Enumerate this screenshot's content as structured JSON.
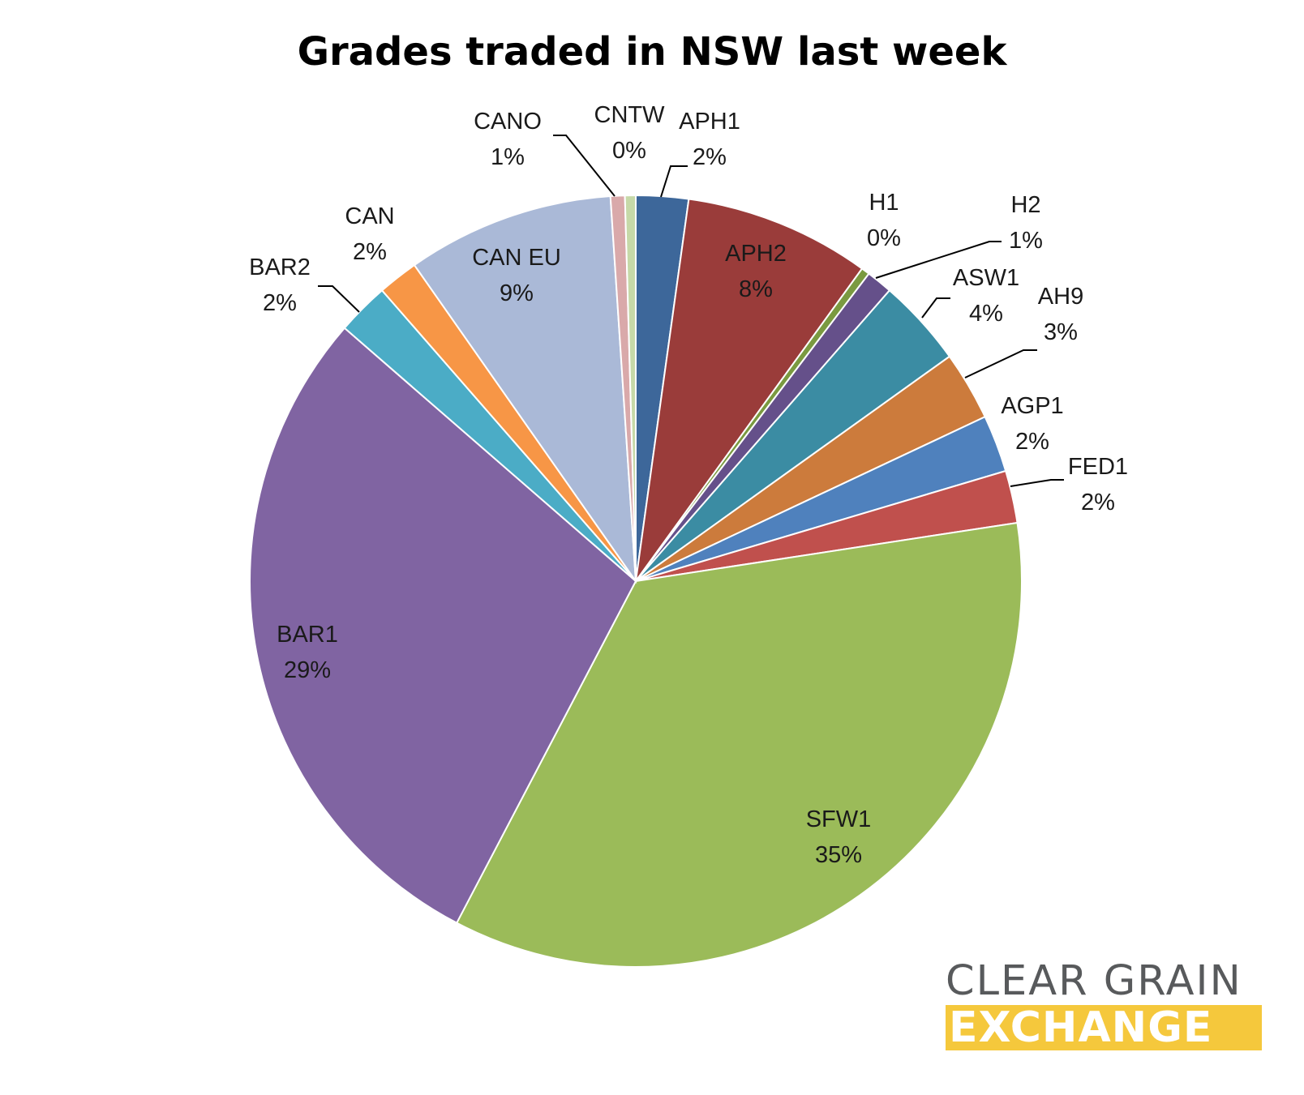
{
  "title": "Grades traded in NSW last week",
  "logo": {
    "line1": "CLEAR GRAIN",
    "line2": "EXCHANGE",
    "text_color": "#585a5c",
    "band_color": "#f5c83c"
  },
  "chart_data": {
    "type": "pie",
    "title": "Grades traded in NSW last week",
    "start": "12 o'clock, clockwise",
    "slices": [
      {
        "name": "APH1",
        "value": 2.2,
        "label": "APH1",
        "pct": "2%",
        "color": "#3d679a"
      },
      {
        "name": "APH2",
        "value": 7.8,
        "label": "APH2",
        "pct": "8%",
        "color": "#9a3c3a"
      },
      {
        "name": "H1",
        "value": 0.35,
        "label": "H1",
        "pct": "0%",
        "color": "#7a9a40"
      },
      {
        "name": "H2",
        "value": 1.1,
        "label": "H2",
        "pct": "1%",
        "color": "#65508a"
      },
      {
        "name": "ASW1",
        "value": 3.7,
        "label": "ASW1",
        "pct": "4%",
        "color": "#3b8ca3"
      },
      {
        "name": "AH9",
        "value": 2.9,
        "label": "AH9",
        "pct": "3%",
        "color": "#cc7b3c"
      },
      {
        "name": "AGP1",
        "value": 2.4,
        "label": "AGP1",
        "pct": "2%",
        "color": "#4f81bd"
      },
      {
        "name": "FED1",
        "value": 2.2,
        "label": "FED1",
        "pct": "2%",
        "color": "#c0504d"
      },
      {
        "name": "SFW1",
        "value": 35.2,
        "label": "SFW1",
        "pct": "35%",
        "color": "#9bbb59"
      },
      {
        "name": "BAR1",
        "value": 28.8,
        "label": "BAR1",
        "pct": "29%",
        "color": "#8064a2"
      },
      {
        "name": "BAR2",
        "value": 2.2,
        "label": "BAR2",
        "pct": "2%",
        "color": "#4bacc6"
      },
      {
        "name": "CAN",
        "value": 1.7,
        "label": "CAN",
        "pct": "2%",
        "color": "#f79646"
      },
      {
        "name": "CAN EU",
        "value": 8.7,
        "label": "CAN EU",
        "pct": "9%",
        "color": "#aab9d7"
      },
      {
        "name": "CANO",
        "value": 0.6,
        "label": "CANO",
        "pct": "1%",
        "color": "#d9a9aa"
      },
      {
        "name": "CNTW",
        "value": 0.45,
        "label": "CNTW",
        "pct": "0%",
        "color": "#c6d9a8"
      }
    ]
  }
}
